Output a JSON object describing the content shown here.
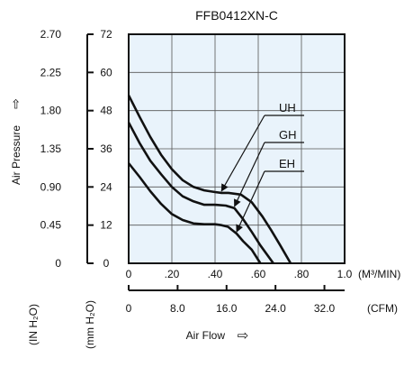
{
  "chart_data": {
    "type": "line",
    "title": "FFB0412XN-C",
    "x_axis": {
      "primary": {
        "unit_label": "(M³/MIN)",
        "ticks": [
          "0",
          ".20",
          ".40",
          ".60",
          ".80",
          "1.0"
        ],
        "range": [
          0,
          1.0
        ]
      },
      "secondary": {
        "unit_label": "(CFM)",
        "ticks": [
          "0",
          "8.0",
          "16.0",
          "24.0",
          "32.0"
        ],
        "range": [
          0,
          35.3
        ]
      },
      "label": "Air Flow",
      "arrow": "⇨"
    },
    "y_axis": {
      "primary": {
        "unit_label": "(IN H₂O)",
        "ticks": [
          "0",
          "0.45",
          "0.90",
          "1.35",
          "1.80",
          "2.25",
          "2.70"
        ],
        "range": [
          0,
          2.7
        ]
      },
      "secondary": {
        "unit_label": "(mm H₂O)",
        "ticks": [
          "0",
          "12",
          "24",
          "36",
          "48",
          "60",
          "72"
        ],
        "range": [
          0,
          72
        ]
      },
      "label": "Air Pressure",
      "arrow": "⇨"
    },
    "grid": true,
    "plot_background": "#e9f3fb",
    "series": [
      {
        "name": "UH",
        "points": [
          [
            0,
            1.98
          ],
          [
            0.05,
            1.73
          ],
          [
            0.1,
            1.49
          ],
          [
            0.15,
            1.28
          ],
          [
            0.2,
            1.11
          ],
          [
            0.25,
            0.98
          ],
          [
            0.3,
            0.9
          ],
          [
            0.35,
            0.86
          ],
          [
            0.4,
            0.84
          ],
          [
            0.43,
            0.83
          ],
          [
            0.46,
            0.83
          ],
          [
            0.52,
            0.81
          ],
          [
            0.57,
            0.72
          ],
          [
            0.62,
            0.55
          ],
          [
            0.66,
            0.39
          ],
          [
            0.7,
            0.22
          ],
          [
            0.75,
            0
          ]
        ]
      },
      {
        "name": "GH",
        "points": [
          [
            0,
            1.66
          ],
          [
            0.05,
            1.42
          ],
          [
            0.1,
            1.21
          ],
          [
            0.15,
            1.05
          ],
          [
            0.2,
            0.9
          ],
          [
            0.25,
            0.79
          ],
          [
            0.3,
            0.73
          ],
          [
            0.35,
            0.69
          ],
          [
            0.4,
            0.69
          ],
          [
            0.45,
            0.68
          ],
          [
            0.49,
            0.65
          ],
          [
            0.53,
            0.52
          ],
          [
            0.57,
            0.37
          ],
          [
            0.61,
            0.21
          ],
          [
            0.67,
            0
          ]
        ]
      },
      {
        "name": "EH",
        "points": [
          [
            0,
            1.18
          ],
          [
            0.05,
            1.02
          ],
          [
            0.1,
            0.85
          ],
          [
            0.15,
            0.7
          ],
          [
            0.2,
            0.58
          ],
          [
            0.25,
            0.51
          ],
          [
            0.3,
            0.47
          ],
          [
            0.35,
            0.46
          ],
          [
            0.4,
            0.46
          ],
          [
            0.43,
            0.45
          ],
          [
            0.46,
            0.43
          ],
          [
            0.5,
            0.35
          ],
          [
            0.53,
            0.26
          ],
          [
            0.57,
            0.16
          ],
          [
            0.61,
            0
          ]
        ]
      }
    ],
    "annotations": [
      {
        "text": "UH",
        "points_to": [
          0.43,
          0.83
        ]
      },
      {
        "text": "GH",
        "points_to": [
          0.49,
          0.65
        ]
      },
      {
        "text": "EH",
        "points_to": [
          0.5,
          0.35
        ]
      }
    ]
  }
}
